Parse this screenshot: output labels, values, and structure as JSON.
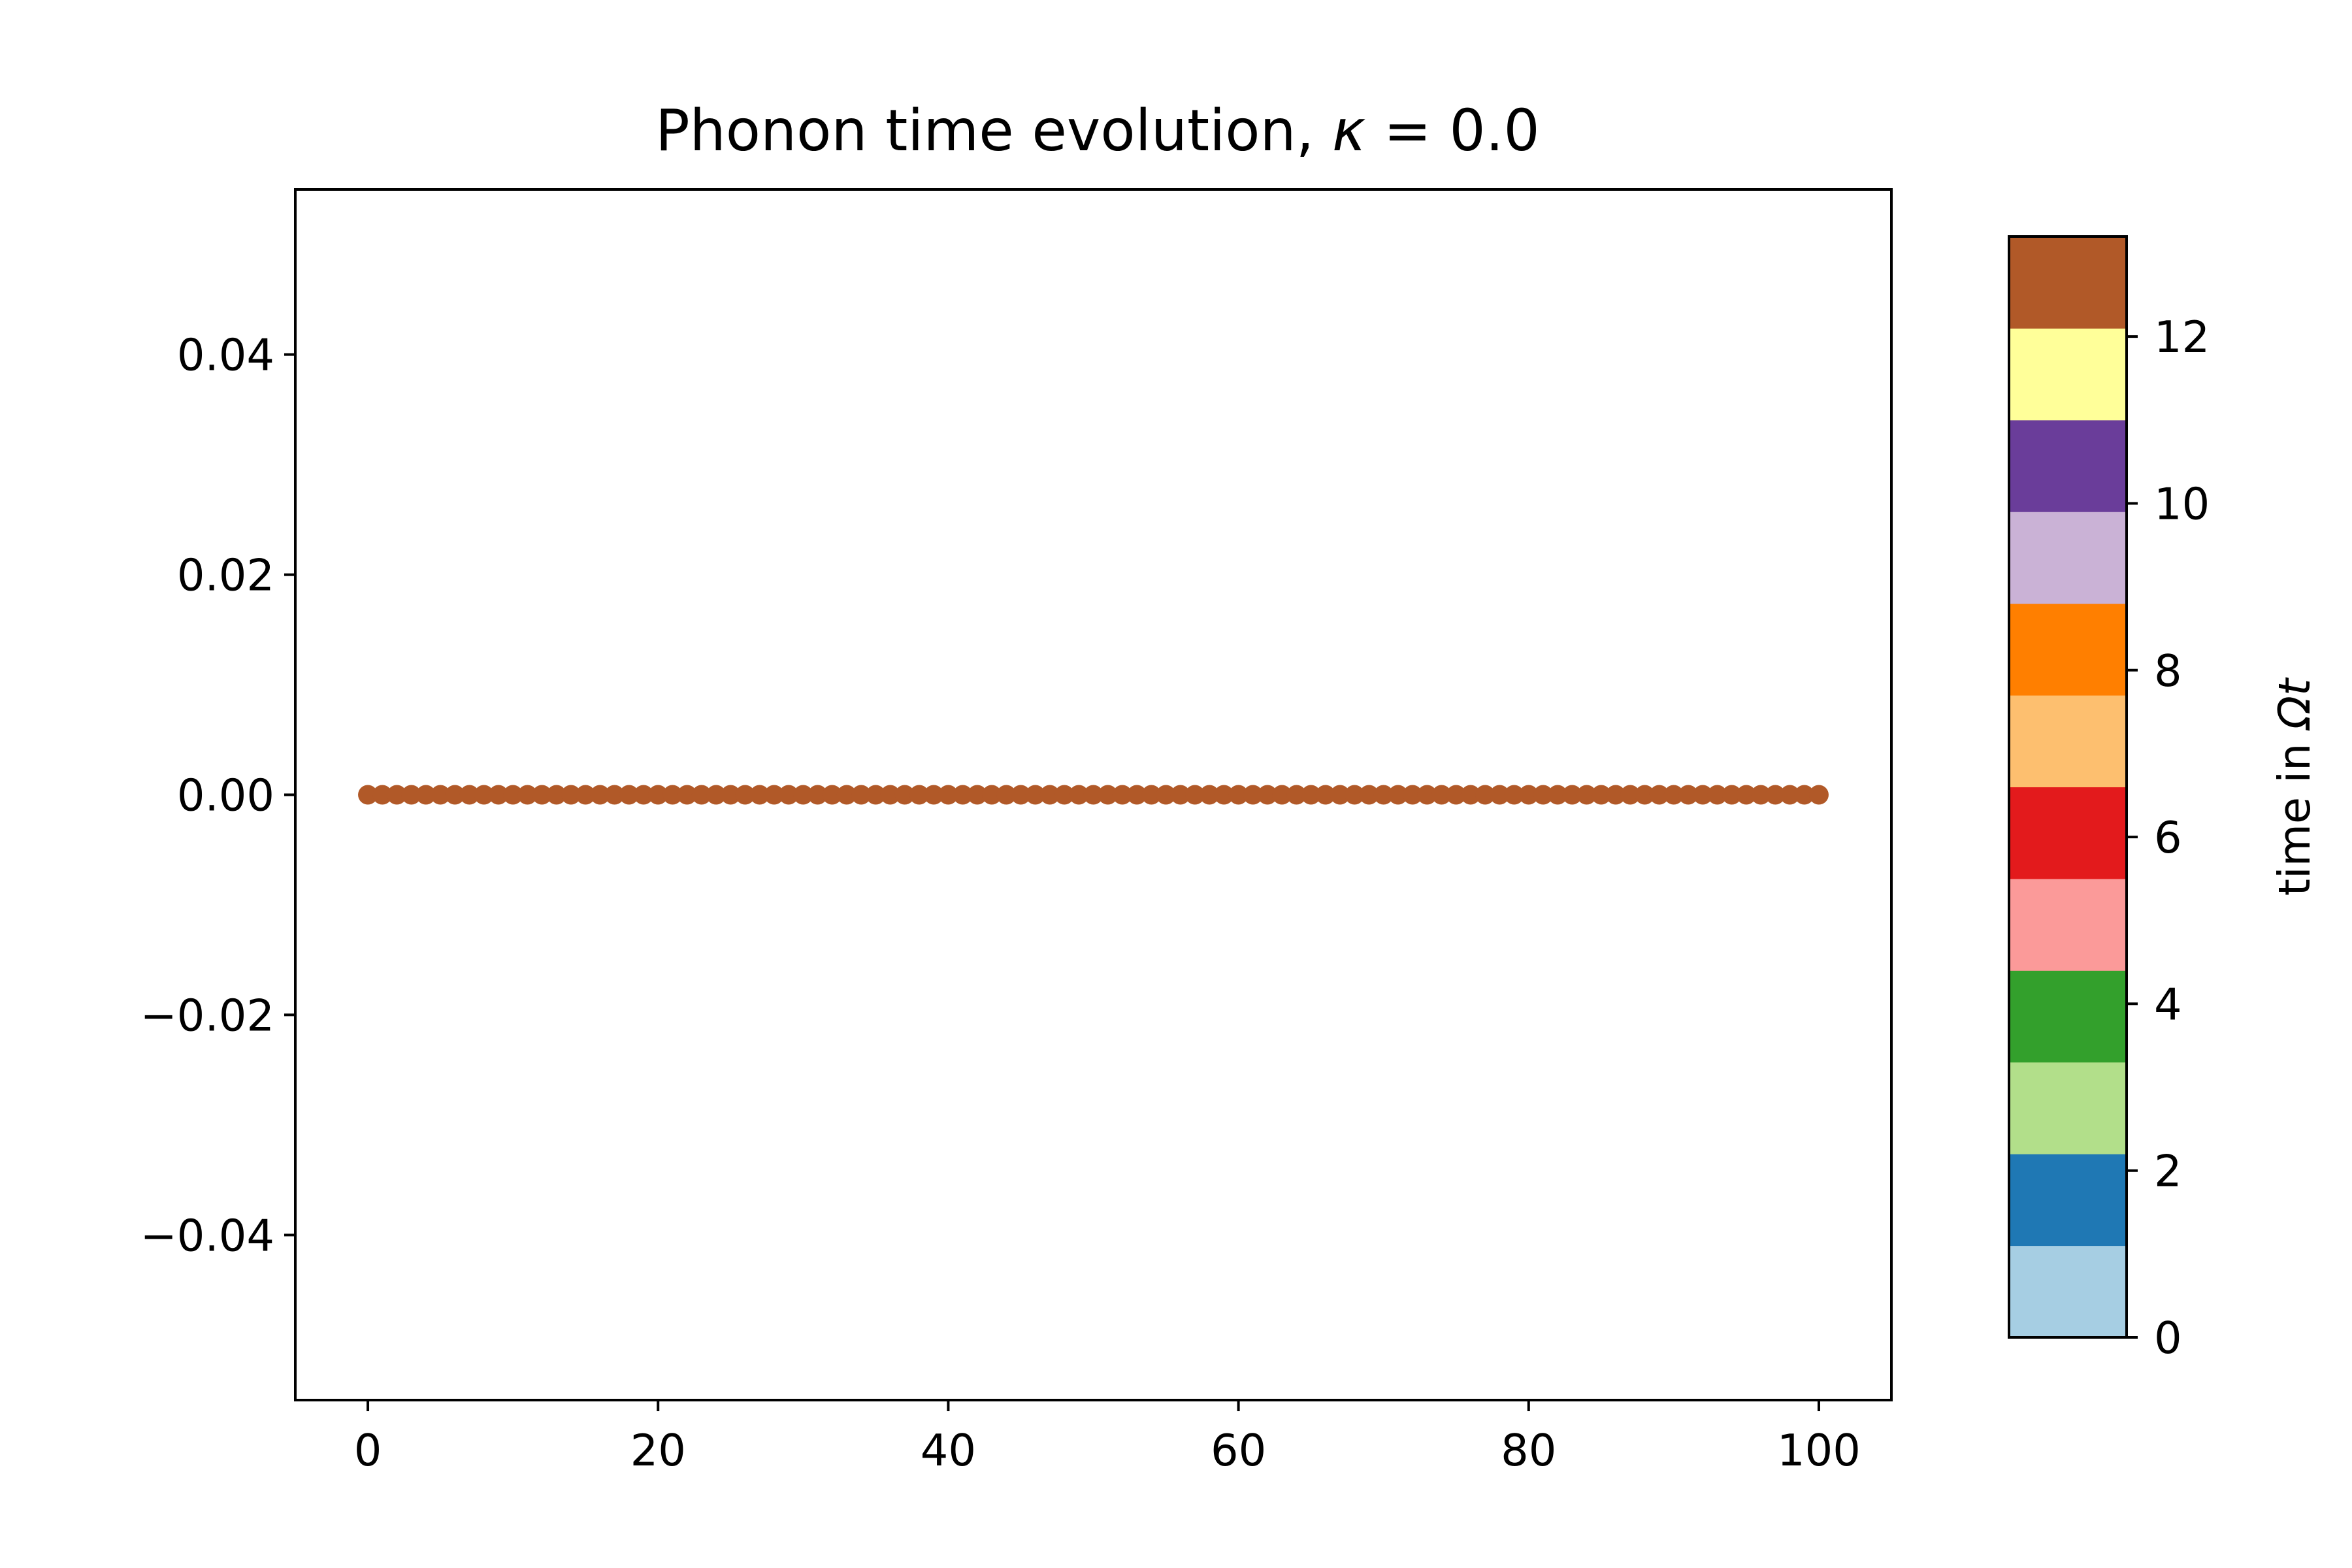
{
  "chart_data": {
    "type": "scatter",
    "title_prefix": "Phonon time evolution, ",
    "title_math": "κ",
    "title_suffix": " = 0.0",
    "xlabel": "",
    "ylabel": "",
    "xlim": [
      -5,
      105
    ],
    "ylim": [
      -0.055,
      0.055
    ],
    "grid": false,
    "x_ticks": [
      0,
      20,
      40,
      60,
      80,
      100
    ],
    "x_tick_labels": [
      "0",
      "20",
      "40",
      "60",
      "80",
      "100"
    ],
    "y_ticks": [
      0.04,
      0.02,
      0.0,
      -0.02,
      -0.04
    ],
    "y_tick_labels": [
      "0.04",
      "0.02",
      "0.00",
      "−0.02",
      "−0.04"
    ],
    "series": [
      {
        "x_start": 0,
        "x_end": 100,
        "x_step": 1,
        "y_constant": 0.0,
        "color": "#b15928"
      }
    ],
    "colorbar": {
      "label_prefix": "time in ",
      "label_math": "Ωt",
      "range": [
        0,
        13.2
      ],
      "ticks": [
        0,
        2,
        4,
        6,
        8,
        10,
        12
      ],
      "tick_labels": [
        "0",
        "2",
        "4",
        "6",
        "8",
        "10",
        "12"
      ],
      "colors": [
        "#a6cee3",
        "#1f78b4",
        "#b2df8a",
        "#33a02c",
        "#fb9a99",
        "#e31a1c",
        "#fdbf6f",
        "#ff7f00",
        "#cab2d6",
        "#6a3d9a",
        "#ffff99",
        "#b15928"
      ]
    }
  }
}
